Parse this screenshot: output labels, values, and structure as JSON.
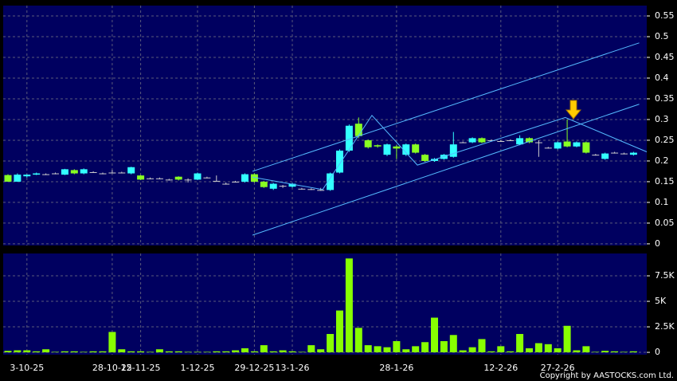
{
  "chart_data": [
    {
      "type": "candlestick",
      "categories": [
        null,
        null,
        "3-10-25",
        null,
        null,
        null,
        null,
        null,
        null,
        null,
        null,
        "28-10-25",
        null,
        null,
        "12-11-25",
        null,
        null,
        null,
        null,
        null,
        "1-12-25",
        null,
        null,
        null,
        null,
        null,
        "29-12-25",
        null,
        null,
        null,
        "13-1-26",
        null,
        null,
        null,
        null,
        null,
        null,
        null,
        null,
        null,
        null,
        "28-1-26",
        null,
        null,
        null,
        null,
        null,
        null,
        null,
        null,
        null,
        null,
        "12-2-26",
        null,
        null,
        null,
        null,
        null,
        "27-2-26",
        null,
        null,
        null,
        null,
        null,
        null,
        null,
        null
      ],
      "open": [
        0.166,
        0.15,
        0.163,
        0.167,
        0.168,
        0.17,
        0.167,
        0.178,
        0.17,
        0.173,
        0.17,
        0.172,
        0.172,
        0.17,
        0.165,
        0.158,
        0.158,
        0.155,
        0.162,
        0.155,
        0.155,
        0.16,
        0.152,
        0.145,
        0.15,
        0.15,
        0.168,
        0.15,
        0.133,
        0.14,
        0.138,
        0.133,
        0.132,
        0.13,
        0.13,
        0.172,
        0.225,
        0.29,
        0.25,
        0.238,
        0.215,
        0.235,
        0.215,
        0.24,
        0.215,
        0.2,
        0.205,
        0.21,
        0.245,
        0.245,
        0.255,
        0.25,
        0.248,
        0.25,
        0.24,
        0.255,
        0.245,
        0.232,
        0.23,
        0.247,
        0.235,
        0.245,
        0.215,
        0.205,
        0.22,
        0.218,
        0.215
      ],
      "high": [
        0.168,
        0.17,
        0.168,
        0.172,
        0.17,
        0.172,
        0.181,
        0.18,
        0.182,
        0.175,
        0.172,
        0.178,
        0.174,
        0.186,
        0.166,
        0.16,
        0.16,
        0.157,
        0.163,
        0.158,
        0.172,
        0.162,
        0.165,
        0.148,
        0.152,
        0.17,
        0.17,
        0.152,
        0.147,
        0.142,
        0.147,
        0.135,
        0.134,
        0.135,
        0.172,
        0.228,
        0.288,
        0.305,
        0.252,
        0.24,
        0.242,
        0.238,
        0.242,
        0.242,
        0.217,
        0.207,
        0.217,
        0.27,
        0.247,
        0.257,
        0.257,
        0.252,
        0.25,
        0.252,
        0.262,
        0.257,
        0.25,
        0.234,
        0.247,
        0.3,
        0.247,
        0.247,
        0.217,
        0.22,
        0.222,
        0.22,
        0.222
      ],
      "low": [
        0.15,
        0.15,
        0.16,
        0.166,
        0.166,
        0.168,
        0.166,
        0.168,
        0.168,
        0.171,
        0.168,
        0.17,
        0.17,
        0.168,
        0.154,
        0.156,
        0.156,
        0.153,
        0.153,
        0.148,
        0.154,
        0.158,
        0.15,
        0.143,
        0.148,
        0.148,
        0.148,
        0.135,
        0.13,
        0.135,
        0.136,
        0.131,
        0.13,
        0.128,
        0.128,
        0.17,
        0.222,
        0.255,
        0.23,
        0.232,
        0.212,
        0.205,
        0.212,
        0.218,
        0.198,
        0.198,
        0.203,
        0.208,
        0.243,
        0.243,
        0.243,
        0.248,
        0.246,
        0.248,
        0.238,
        0.243,
        0.21,
        0.23,
        0.228,
        0.233,
        0.233,
        0.218,
        0.213,
        0.203,
        0.218,
        0.216,
        0.213
      ],
      "close": [
        0.15,
        0.167,
        0.167,
        0.17,
        0.168,
        0.17,
        0.18,
        0.17,
        0.18,
        0.173,
        0.17,
        0.172,
        0.172,
        0.185,
        0.155,
        0.158,
        0.158,
        0.155,
        0.155,
        0.155,
        0.17,
        0.16,
        0.152,
        0.145,
        0.15,
        0.168,
        0.15,
        0.137,
        0.145,
        0.14,
        0.145,
        0.133,
        0.132,
        0.13,
        0.17,
        0.225,
        0.285,
        0.26,
        0.233,
        0.235,
        0.24,
        0.23,
        0.24,
        0.22,
        0.2,
        0.205,
        0.215,
        0.24,
        0.245,
        0.255,
        0.245,
        0.25,
        0.248,
        0.25,
        0.255,
        0.245,
        0.245,
        0.232,
        0.245,
        0.235,
        0.245,
        0.22,
        0.215,
        0.218,
        0.22,
        0.218,
        0.22
      ],
      "up_color": "#33ffff",
      "down_color": "#88ff22",
      "flat_color": "#cccccc",
      "ylim": [
        -0.004,
        0.575
      ],
      "yticks": [
        0,
        0.05,
        0.1,
        0.15,
        0.2,
        0.25,
        0.3,
        0.35,
        0.4,
        0.45,
        0.5,
        0.55
      ],
      "grid": true,
      "trend_lines": [
        {
          "color": "#55bbff",
          "x": [
            25.8,
            66.6
          ],
          "values": [
            0.175,
            0.485
          ]
        },
        {
          "color": "#55bbff",
          "x": [
            25.8,
            66.6
          ],
          "values": [
            0.021,
            0.337
          ]
        },
        {
          "color": "#55bbff",
          "x": [
            25.8,
            33.2,
            38.4,
            43.2,
            58.8,
            67.4
          ],
          "values": [
            0.161,
            0.131,
            0.31,
            0.19,
            0.305,
            0.222
          ]
        }
      ]
    },
    {
      "type": "bar",
      "values": [
        0.15,
        0.2,
        0.2,
        0.1,
        0.3,
        0.05,
        0.1,
        0.1,
        0.05,
        0.1,
        0.1,
        2.0,
        0.3,
        0.1,
        0.1,
        0.05,
        0.3,
        0.1,
        0.1,
        0.05,
        0.05,
        0.05,
        0.1,
        0.1,
        0.2,
        0.4,
        0.1,
        0.7,
        0.1,
        0.2,
        0.1,
        0.05,
        0.7,
        0.3,
        1.8,
        4.1,
        9.2,
        2.4,
        0.7,
        0.6,
        0.5,
        1.1,
        0.3,
        0.6,
        1.0,
        3.4,
        1.1,
        1.7,
        0.2,
        0.5,
        1.3,
        0.1,
        0.6,
        0.1,
        1.8,
        0.4,
        0.9,
        0.8,
        0.4,
        2.6,
        0.2,
        0.6,
        0.05,
        0.15,
        0.1,
        0.05,
        0.1
      ],
      "color": "#88ff00",
      "ylim": [
        -0.23,
        9.69
      ],
      "yticks": [
        0,
        {
          "value": 2.5,
          "label": "2.5K"
        },
        {
          "value": 5,
          "label": "5K"
        },
        {
          "value": 7.5,
          "label": "7.5K"
        }
      ],
      "grid": true
    }
  ],
  "copyright": "Copyright by AASTOCKS.com Ltd."
}
